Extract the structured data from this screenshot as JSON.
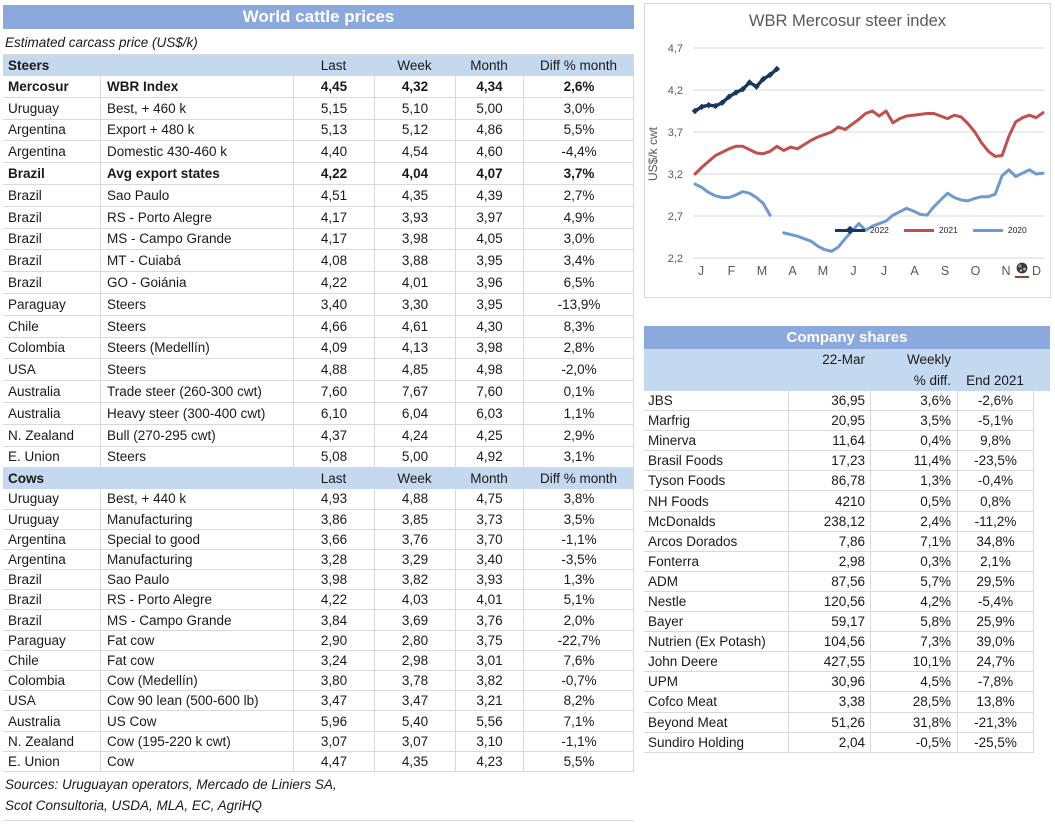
{
  "left_table": {
    "title": "World cattle prices",
    "subtitle": "Estimated carcass price (US$/k)",
    "columns": [
      "Last",
      "Week",
      "Month",
      "Diff % month"
    ],
    "steers_label": "Steers",
    "cows_label": "Cows",
    "steers_rows": [
      {
        "country": "Mercosur",
        "desc": "WBR Index",
        "last": "4,45",
        "week": "4,32",
        "month": "4,34",
        "diff": "2,6%",
        "bold": true
      },
      {
        "country": "Uruguay",
        "desc": "Best, + 460 k",
        "last": "5,15",
        "week": "5,10",
        "month": "5,00",
        "diff": "3,0%"
      },
      {
        "country": "Argentina",
        "desc": "Export + 480 k",
        "last": "5,13",
        "week": "5,12",
        "month": "4,86",
        "diff": "5,5%"
      },
      {
        "country": "Argentina",
        "desc": "Domestic 430-460 k",
        "last": "4,40",
        "week": "4,54",
        "month": "4,60",
        "diff": "-4,4%"
      },
      {
        "country": "Brazil",
        "desc": "Avg export states",
        "last": "4,22",
        "week": "4,04",
        "month": "4,07",
        "diff": "3,7%",
        "bold": true
      },
      {
        "country": "Brazil",
        "desc": "Sao Paulo",
        "last": "4,51",
        "week": "4,35",
        "month": "4,39",
        "diff": "2,7%"
      },
      {
        "country": "Brazil",
        "desc": "RS - Porto Alegre",
        "last": "4,17",
        "week": "3,93",
        "month": "3,97",
        "diff": "4,9%"
      },
      {
        "country": "Brazil",
        "desc": "MS - Campo Grande",
        "last": "4,17",
        "week": "3,98",
        "month": "4,05",
        "diff": "3,0%"
      },
      {
        "country": "Brazil",
        "desc": "MT - Cuiabá",
        "last": "4,08",
        "week": "3,88",
        "month": "3,95",
        "diff": "3,4%"
      },
      {
        "country": "Brazil",
        "desc": "GO - Goiánia",
        "last": "4,22",
        "week": "4,01",
        "month": "3,96",
        "diff": "6,5%"
      },
      {
        "country": "Paraguay",
        "desc": "Steers",
        "last": "3,40",
        "week": "3,30",
        "month": "3,95",
        "diff": "-13,9%"
      },
      {
        "country": "Chile",
        "desc": "Steers",
        "last": "4,66",
        "week": "4,61",
        "month": "4,30",
        "diff": "8,3%"
      },
      {
        "country": "Colombia",
        "desc": "Steers (Medellín)",
        "last": "4,09",
        "week": "4,13",
        "month": "3,98",
        "diff": "2,8%"
      },
      {
        "country": "USA",
        "desc": "Steers",
        "last": "4,88",
        "week": "4,85",
        "month": "4,98",
        "diff": "-2,0%"
      },
      {
        "country": "Australia",
        "desc": "Trade steer (260-300 cwt)",
        "last": "7,60",
        "week": "7,67",
        "month": "7,60",
        "diff": "0,1%"
      },
      {
        "country": "Australia",
        "desc": "Heavy steer (300-400 cwt)",
        "last": "6,10",
        "week": "6,04",
        "month": "6,03",
        "diff": "1,1%"
      },
      {
        "country": "N. Zealand",
        "desc": "Bull (270-295 cwt)",
        "last": "4,37",
        "week": "4,24",
        "month": "4,25",
        "diff": "2,9%"
      },
      {
        "country": "E. Union",
        "desc": "Steers",
        "last": "5,08",
        "week": "5,00",
        "month": "4,92",
        "diff": "3,1%"
      }
    ],
    "cows_rows": [
      {
        "country": "Uruguay",
        "desc": "Best, + 440 k",
        "last": "4,93",
        "week": "4,88",
        "month": "4,75",
        "diff": "3,8%"
      },
      {
        "country": "Uruguay",
        "desc": "Manufacturing",
        "last": "3,86",
        "week": "3,85",
        "month": "3,73",
        "diff": "3,5%"
      },
      {
        "country": "Argentina",
        "desc": "Special to good",
        "last": "3,66",
        "week": "3,76",
        "month": "3,70",
        "diff": "-1,1%"
      },
      {
        "country": "Argentina",
        "desc": "Manufacturing",
        "last": "3,28",
        "week": "3,29",
        "month": "3,40",
        "diff": "-3,5%"
      },
      {
        "country": "Brazil",
        "desc": "Sao Paulo",
        "last": "3,98",
        "week": "3,82",
        "month": "3,93",
        "diff": "1,3%"
      },
      {
        "country": "Brazil",
        "desc": "RS - Porto Alegre",
        "last": "4,22",
        "week": "4,03",
        "month": "4,01",
        "diff": "5,1%"
      },
      {
        "country": "Brazil",
        "desc": "MS - Campo Grande",
        "last": "3,84",
        "week": "3,69",
        "month": "3,76",
        "diff": "2,0%"
      },
      {
        "country": "Paraguay",
        "desc": "Fat cow",
        "last": "2,90",
        "week": "2,80",
        "month": "3,75",
        "diff": "-22,7%"
      },
      {
        "country": "Chile",
        "desc": "Fat cow",
        "last": "3,24",
        "week": "2,98",
        "month": "3,01",
        "diff": "7,6%"
      },
      {
        "country": "Colombia",
        "desc": "Cow (Medellín)",
        "last": "3,80",
        "week": "3,78",
        "month": "3,82",
        "diff": "-0,7%"
      },
      {
        "country": "USA",
        "desc": "Cow 90 lean (500-600 lb)",
        "last": "3,47",
        "week": "3,47",
        "month": "3,21",
        "diff": "8,2%"
      },
      {
        "country": "Australia",
        "desc": "US Cow",
        "last": "5,96",
        "week": "5,40",
        "month": "5,56",
        "diff": "7,1%"
      },
      {
        "country": "N. Zealand",
        "desc": "Cow (195-220 k cwt)",
        "last": "3,07",
        "week": "3,07",
        "month": "3,10",
        "diff": "-1,1%"
      },
      {
        "country": "E. Union",
        "desc": "Cow",
        "last": "4,47",
        "week": "4,35",
        "month": "4,23",
        "diff": "5,5%"
      }
    ],
    "sources_line1": "Sources: Uruguayan operators, Mercado de Liniers SA,",
    "sources_line2": "Scot Consultoria, USDA, MLA, EC, AgriHQ"
  },
  "company_table": {
    "title": "Company shares",
    "col_date": "22-Mar",
    "col_weekly_line1": "Weekly",
    "col_weekly_line2": "% diff.",
    "col_end": "End 2021",
    "rows": [
      {
        "name": "JBS",
        "price": "36,95",
        "weekly": "3,6%",
        "end": "-2,6%"
      },
      {
        "name": "Marfrig",
        "price": "20,95",
        "weekly": "3,5%",
        "end": "-5,1%"
      },
      {
        "name": "Minerva",
        "price": "11,64",
        "weekly": "0,4%",
        "end": "9,8%"
      },
      {
        "name": "Brasil Foods",
        "price": "17,23",
        "weekly": "11,4%",
        "end": "-23,5%"
      },
      {
        "name": "Tyson Foods",
        "price": "86,78",
        "weekly": "1,3%",
        "end": "-0,4%"
      },
      {
        "name": "NH Foods",
        "price": "4210",
        "weekly": "0,5%",
        "end": "0,8%"
      },
      {
        "name": "McDonalds",
        "price": "238,12",
        "weekly": "2,4%",
        "end": "-11,2%"
      },
      {
        "name": "Arcos Dorados",
        "price": "7,86",
        "weekly": "7,1%",
        "end": "34,8%"
      },
      {
        "name": "Fonterra",
        "price": "2,98",
        "weekly": "0,3%",
        "end": "2,1%"
      },
      {
        "name": "ADM",
        "price": "87,56",
        "weekly": "5,7%",
        "end": "29,5%"
      },
      {
        "name": "Nestle",
        "price": "120,56",
        "weekly": "4,2%",
        "end": "-5,4%"
      },
      {
        "name": "Bayer",
        "price": "59,17",
        "weekly": "5,8%",
        "end": "25,9%"
      },
      {
        "name": "Nutrien (Ex Potash)",
        "price": "104,56",
        "weekly": "7,3%",
        "end": "39,0%"
      },
      {
        "name": "John Deere",
        "price": "427,55",
        "weekly": "10,1%",
        "end": "24,7%"
      },
      {
        "name": "UPM",
        "price": "30,96",
        "weekly": "4,5%",
        "end": "-7,8%"
      },
      {
        "name": "Cofco Meat",
        "price": "3,38",
        "weekly": "28,5%",
        "end": "13,8%"
      },
      {
        "name": "Beyond Meat",
        "price": "51,26",
        "weekly": "31,8%",
        "end": "-21,3%"
      },
      {
        "name": "Sundiro Holding",
        "price": "2,04",
        "weekly": "-0,5%",
        "end": "-25,5%"
      }
    ]
  },
  "chart_data": {
    "type": "line",
    "title": "WBR Mercosur steer index",
    "ylabel": "US$/k cwt",
    "ylim": [
      2.2,
      4.7
    ],
    "ytick_labels": [
      "4,7",
      "4,2",
      "3,7",
      "3,2",
      "2,7",
      "2,2"
    ],
    "ytick_values": [
      4.7,
      4.2,
      3.7,
      3.2,
      2.7,
      2.2
    ],
    "x_tick_labels": [
      "J",
      "F",
      "M",
      "A",
      "M",
      "J",
      "J",
      "A",
      "S",
      "O",
      "N",
      "D"
    ],
    "x_unit": "weekly values, January to December",
    "grid": true,
    "gridline_color": "#D9D9D9",
    "axis_text_color": "#595959",
    "legend_position": "inside bottom-right",
    "corner_icon": "globe",
    "series": [
      {
        "name": "2022",
        "color": "#17375D",
        "marker": "diamond",
        "stroke_width": 3.4,
        "values": [
          3.95,
          4.0,
          4.02,
          4.01,
          4.05,
          4.12,
          4.17,
          4.21,
          4.29,
          4.24,
          4.33,
          4.38,
          4.45
        ]
      },
      {
        "name": "2021",
        "color": "#C0504D",
        "marker": "none",
        "stroke_width": 3,
        "values": [
          3.2,
          3.28,
          3.35,
          3.42,
          3.46,
          3.5,
          3.53,
          3.53,
          3.49,
          3.45,
          3.44,
          3.47,
          3.53,
          3.48,
          3.52,
          3.5,
          3.55,
          3.6,
          3.64,
          3.67,
          3.7,
          3.76,
          3.73,
          3.79,
          3.85,
          3.92,
          3.95,
          3.89,
          3.95,
          3.81,
          3.86,
          3.89,
          3.9,
          3.91,
          3.92,
          3.92,
          3.89,
          3.86,
          3.9,
          3.88,
          3.8,
          3.7,
          3.57,
          3.47,
          3.41,
          3.42,
          3.65,
          3.82,
          3.87,
          3.9,
          3.87,
          3.93
        ]
      },
      {
        "name": "2020",
        "color": "#6D9AD1",
        "marker": "none",
        "stroke_width": 3,
        "values": [
          3.08,
          3.04,
          2.98,
          2.94,
          2.92,
          2.92,
          2.95,
          2.99,
          2.97,
          2.92,
          2.85,
          2.71,
          null,
          2.5,
          2.48,
          2.46,
          2.43,
          2.4,
          2.34,
          2.3,
          2.28,
          2.33,
          2.43,
          2.52,
          2.61,
          2.53,
          2.58,
          2.61,
          2.64,
          2.71,
          2.75,
          2.79,
          2.76,
          2.72,
          2.71,
          2.81,
          2.89,
          2.97,
          2.92,
          2.89,
          2.88,
          2.91,
          2.93,
          2.93,
          2.96,
          3.18,
          3.25,
          3.17,
          3.21,
          3.25,
          3.2,
          3.21
        ]
      }
    ]
  }
}
